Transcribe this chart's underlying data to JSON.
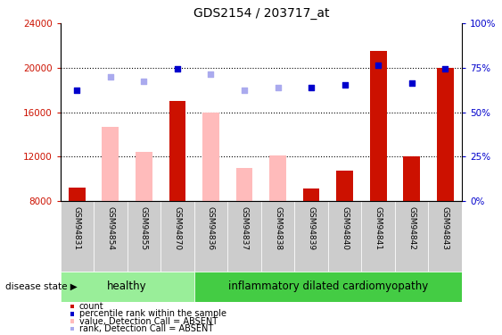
{
  "title": "GDS2154 / 203717_at",
  "samples": [
    "GSM94831",
    "GSM94854",
    "GSM94855",
    "GSM94870",
    "GSM94836",
    "GSM94837",
    "GSM94838",
    "GSM94839",
    "GSM94840",
    "GSM94841",
    "GSM94842",
    "GSM94843"
  ],
  "healthy_count": 4,
  "disease_count": 8,
  "red_bars": [
    9200,
    null,
    null,
    17000,
    null,
    null,
    null,
    9100,
    10700,
    21500,
    12000,
    20000
  ],
  "pink_bars": [
    null,
    14700,
    12400,
    null,
    16000,
    11000,
    12100,
    null,
    null,
    null,
    null,
    null
  ],
  "blue_squares": [
    18000,
    null,
    null,
    19900,
    null,
    null,
    null,
    18200,
    18500,
    20200,
    18600,
    19900
  ],
  "lavender_squares": [
    null,
    19200,
    18800,
    null,
    19400,
    18000,
    18200,
    null,
    null,
    null,
    null,
    null
  ],
  "ylim_left": [
    8000,
    24000
  ],
  "ylim_right": [
    0,
    100
  ],
  "yticks_left": [
    8000,
    12000,
    16000,
    20000,
    24000
  ],
  "yticks_right": [
    0,
    25,
    50,
    75,
    100
  ],
  "ytick_labels_right": [
    "0%",
    "25%",
    "50%",
    "75%",
    "100%"
  ],
  "dotted_lines": [
    12000,
    16000,
    20000
  ],
  "bar_width": 0.5,
  "red_color": "#cc1100",
  "pink_color": "#ffbbbb",
  "blue_color": "#0000cc",
  "lavender_color": "#aaaaee",
  "healthy_color": "#99ee99",
  "disease_color": "#44cc44",
  "label_bg": "#cccccc",
  "plot_bg": "#ffffff",
  "legend_items": [
    {
      "label": "count",
      "color": "#cc1100"
    },
    {
      "label": "percentile rank within the sample",
      "color": "#0000cc"
    },
    {
      "label": "value, Detection Call = ABSENT",
      "color": "#ffbbbb"
    },
    {
      "label": "rank, Detection Call = ABSENT",
      "color": "#aaaaee"
    }
  ]
}
